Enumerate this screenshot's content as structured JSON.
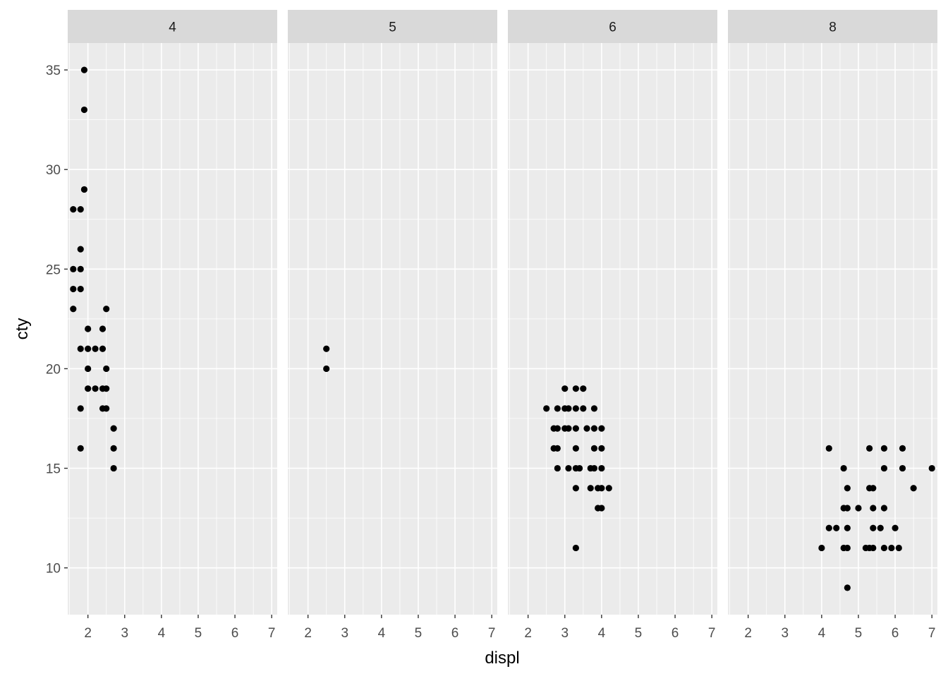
{
  "chart_data": {
    "type": "scatter",
    "xlabel": "displ",
    "ylabel": "cty",
    "xlim": [
      1.45,
      7.15
    ],
    "ylim": [
      7.65,
      36.35
    ],
    "xticks": [
      2,
      3,
      4,
      5,
      6,
      7
    ],
    "yticks": [
      10,
      15,
      20,
      25,
      30,
      35
    ],
    "grid": true,
    "point_color": "#000000",
    "panel_background": "#ebebeb",
    "strip_background": "#d9d9d9",
    "facets": [
      {
        "label": "4",
        "points": [
          [
            1.9,
            35
          ],
          [
            1.9,
            33
          ],
          [
            1.9,
            29
          ],
          [
            1.6,
            28
          ],
          [
            1.8,
            28
          ],
          [
            1.8,
            26
          ],
          [
            1.6,
            25
          ],
          [
            1.8,
            25
          ],
          [
            1.6,
            24
          ],
          [
            1.8,
            24
          ],
          [
            1.6,
            23
          ],
          [
            2.5,
            23
          ],
          [
            2.0,
            22
          ],
          [
            2.4,
            22
          ],
          [
            1.8,
            21
          ],
          [
            2.0,
            21
          ],
          [
            2.2,
            21
          ],
          [
            2.4,
            21
          ],
          [
            2.0,
            20
          ],
          [
            2.5,
            20
          ],
          [
            2.0,
            19
          ],
          [
            2.2,
            19
          ],
          [
            2.4,
            19
          ],
          [
            2.5,
            19
          ],
          [
            1.8,
            18
          ],
          [
            2.4,
            18
          ],
          [
            2.5,
            18
          ],
          [
            2.7,
            17
          ],
          [
            1.8,
            16
          ],
          [
            2.7,
            16
          ],
          [
            2.7,
            15
          ]
        ]
      },
      {
        "label": "5",
        "points": [
          [
            2.5,
            21
          ],
          [
            2.5,
            20
          ]
        ]
      },
      {
        "label": "6",
        "points": [
          [
            3.0,
            19
          ],
          [
            3.3,
            19
          ],
          [
            3.5,
            19
          ],
          [
            2.5,
            18
          ],
          [
            2.8,
            18
          ],
          [
            3.0,
            18
          ],
          [
            3.1,
            18
          ],
          [
            3.3,
            18
          ],
          [
            3.5,
            18
          ],
          [
            3.8,
            18
          ],
          [
            2.7,
            17
          ],
          [
            2.8,
            17
          ],
          [
            3.0,
            17
          ],
          [
            3.1,
            17
          ],
          [
            3.3,
            17
          ],
          [
            3.6,
            17
          ],
          [
            3.8,
            17
          ],
          [
            4.0,
            17
          ],
          [
            2.7,
            16
          ],
          [
            2.8,
            16
          ],
          [
            3.3,
            16
          ],
          [
            3.8,
            16
          ],
          [
            4.0,
            16
          ],
          [
            2.8,
            15
          ],
          [
            3.1,
            15
          ],
          [
            3.3,
            15
          ],
          [
            3.4,
            15
          ],
          [
            3.7,
            15
          ],
          [
            3.8,
            15
          ],
          [
            4.0,
            15
          ],
          [
            3.3,
            14
          ],
          [
            3.7,
            14
          ],
          [
            3.9,
            14
          ],
          [
            4.0,
            14
          ],
          [
            4.2,
            14
          ],
          [
            3.9,
            13
          ],
          [
            4.0,
            13
          ],
          [
            3.3,
            11
          ]
        ]
      },
      {
        "label": "8",
        "points": [
          [
            4.2,
            16
          ],
          [
            5.3,
            16
          ],
          [
            5.7,
            16
          ],
          [
            6.2,
            16
          ],
          [
            4.6,
            15
          ],
          [
            5.7,
            15
          ],
          [
            6.2,
            15
          ],
          [
            7.0,
            15
          ],
          [
            4.7,
            14
          ],
          [
            5.3,
            14
          ],
          [
            5.4,
            14
          ],
          [
            6.5,
            14
          ],
          [
            4.6,
            13
          ],
          [
            4.7,
            13
          ],
          [
            5.0,
            13
          ],
          [
            5.4,
            13
          ],
          [
            5.7,
            13
          ],
          [
            4.2,
            12
          ],
          [
            4.4,
            12
          ],
          [
            4.7,
            12
          ],
          [
            5.4,
            12
          ],
          [
            5.6,
            12
          ],
          [
            6.0,
            12
          ],
          [
            4.0,
            11
          ],
          [
            4.6,
            11
          ],
          [
            4.7,
            11
          ],
          [
            5.2,
            11
          ],
          [
            5.3,
            11
          ],
          [
            5.4,
            11
          ],
          [
            5.7,
            11
          ],
          [
            5.9,
            11
          ],
          [
            6.1,
            11
          ],
          [
            4.7,
            9
          ]
        ]
      }
    ]
  }
}
